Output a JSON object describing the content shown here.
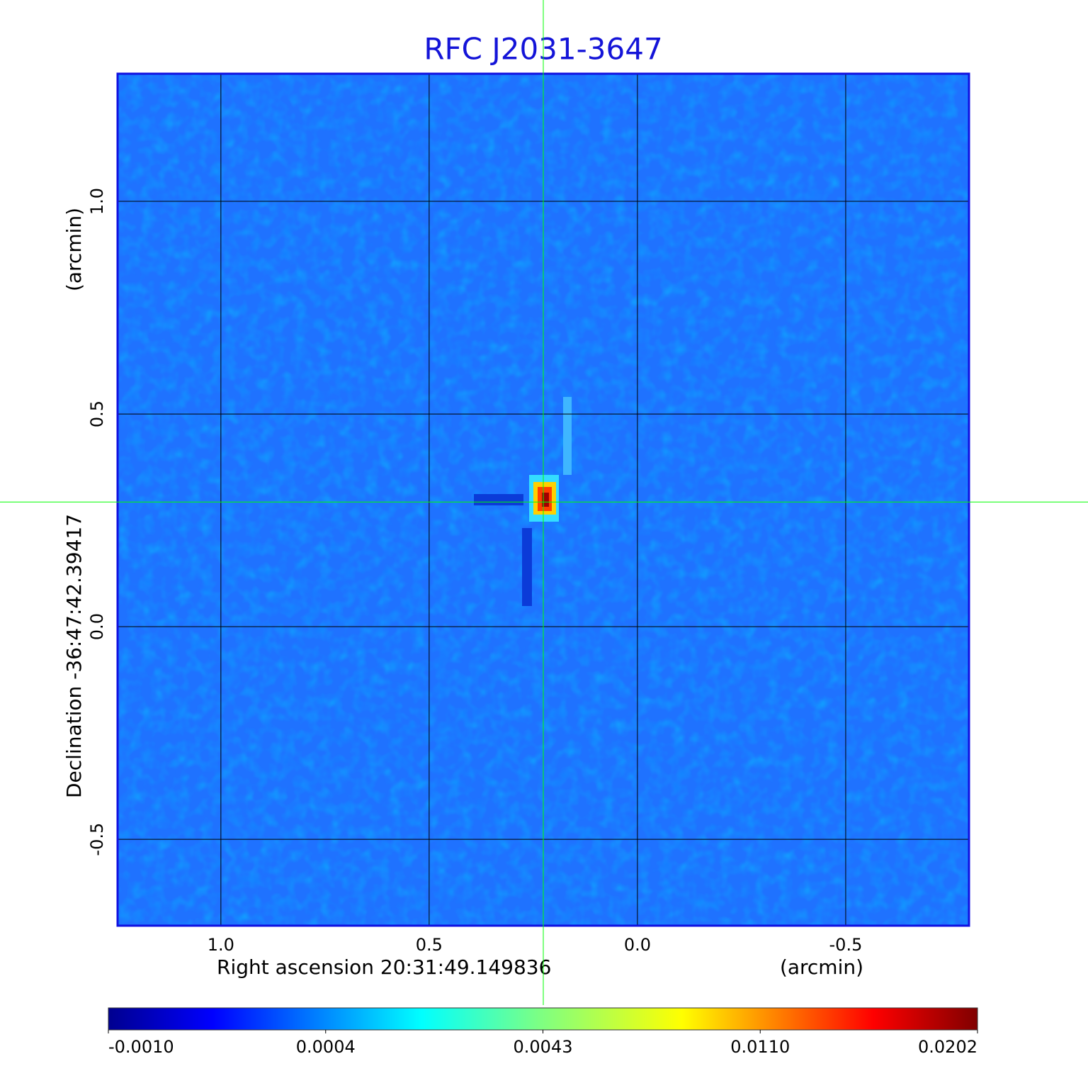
{
  "chart_data": {
    "type": "image",
    "title": "RFC J2031-3647",
    "xlabel": "Right ascension  20:31:49.149836",
    "xunit": "(arcmin)",
    "ylabel": "Declination  -36:47:42.39417",
    "yunit": "(arcmin)",
    "xlim": [
      1.248,
      -0.796
    ],
    "ylim": [
      -0.703,
      1.3
    ],
    "xticks": [
      {
        "value": 1,
        "label": "1.0"
      },
      0.5,
      {
        "value": 0,
        "label": "0.0"
      },
      -0.5
    ],
    "yticks": [
      -0.5,
      {
        "value": 0,
        "label": "0.0"
      },
      0.5,
      {
        "value": 1,
        "label": "1.0"
      }
    ],
    "grid": true,
    "colormap": "jet",
    "crosshair": {
      "x": 0.226,
      "y": 0.293,
      "color": "#00ff00"
    },
    "colorbar_ticks": [
      {
        "value": -0.001,
        "label": "-0.0010"
      },
      {
        "value": 0.0004,
        "label": "0.0004"
      },
      {
        "value": 0.0043,
        "label": "0.0043"
      },
      {
        "value": 0.011,
        "label": "0.0110"
      },
      {
        "value": 0.0202,
        "label": "0.0202"
      }
    ]
  }
}
